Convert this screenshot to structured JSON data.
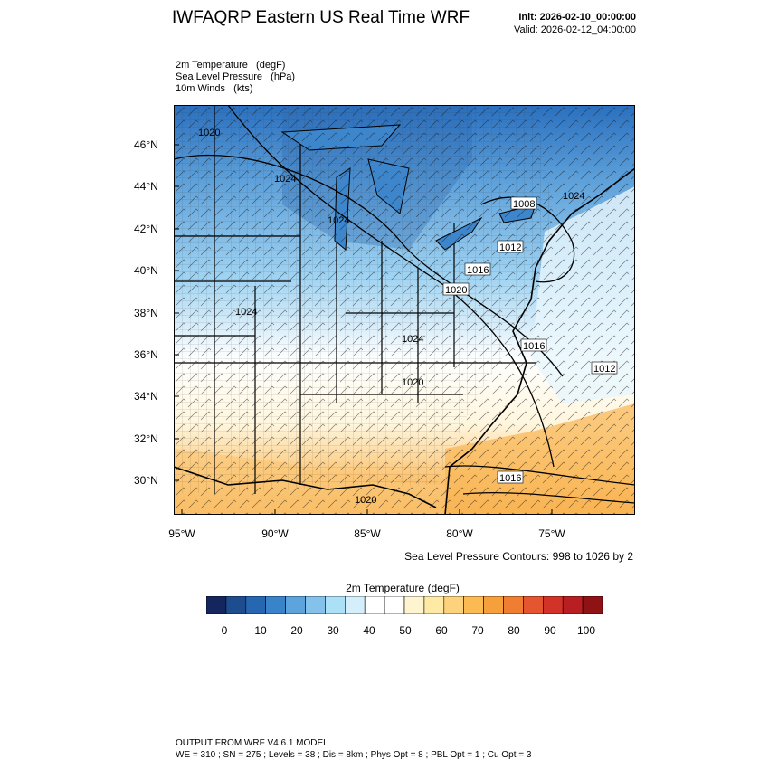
{
  "header": {
    "title": "IWFAQRP Eastern US Real Time WRF",
    "init": "Init: 2026-02-10_00:00:00",
    "valid": "Valid: 2026-02-12_04:00:00"
  },
  "fields": [
    "2m Temperature   (degF)",
    "Sea Level Pressure   (hPa)",
    "10m Winds   (kts)"
  ],
  "map": {
    "lat_labels": [
      "46°N",
      "44°N",
      "42°N",
      "40°N",
      "38°N",
      "36°N",
      "34°N",
      "32°N",
      "30°N"
    ],
    "lon_labels": [
      "95°W",
      "90°W",
      "85°W",
      "80°W",
      "75°W"
    ],
    "isobar_labels": [
      "1020",
      "1024",
      "1024",
      "1024",
      "1008",
      "1012",
      "1016",
      "1020",
      "1024",
      "1016",
      "1012",
      "1024",
      "1020",
      "1016",
      "1020"
    ],
    "colors": {
      "cold": "#2a6fbe",
      "cool": "#9fd3f2",
      "neutral": "#ffffff",
      "warm": "#fcc87a",
      "hot": "#f6a640"
    }
  },
  "contour_note": "Sea Level Pressure Contours: 998 to 1026 by 2",
  "colorbar": {
    "title": "2m Temperature  (degF)",
    "labels": [
      "0",
      "10",
      "20",
      "30",
      "40",
      "50",
      "60",
      "70",
      "80",
      "90",
      "100"
    ],
    "colors": [
      "#15265e",
      "#1d4c8f",
      "#2766b0",
      "#3983c8",
      "#5ca4db",
      "#84c2ec",
      "#ace0f7",
      "#d4effb",
      "#ffffff",
      "#ffffff",
      "#fff4d0",
      "#feeaa5",
      "#fdd27c",
      "#fbba52",
      "#f6a03c",
      "#f07e32",
      "#e55530",
      "#d23227",
      "#b81e22",
      "#8f1215"
    ]
  },
  "footer": {
    "line1": "OUTPUT FROM WRF V4.6.1 MODEL",
    "line2": "WE = 310 ; SN = 275 ; Levels = 38 ; Dis = 8km ; Phys Opt = 8 ; PBL Opt = 1 ; Cu Opt = 3"
  }
}
